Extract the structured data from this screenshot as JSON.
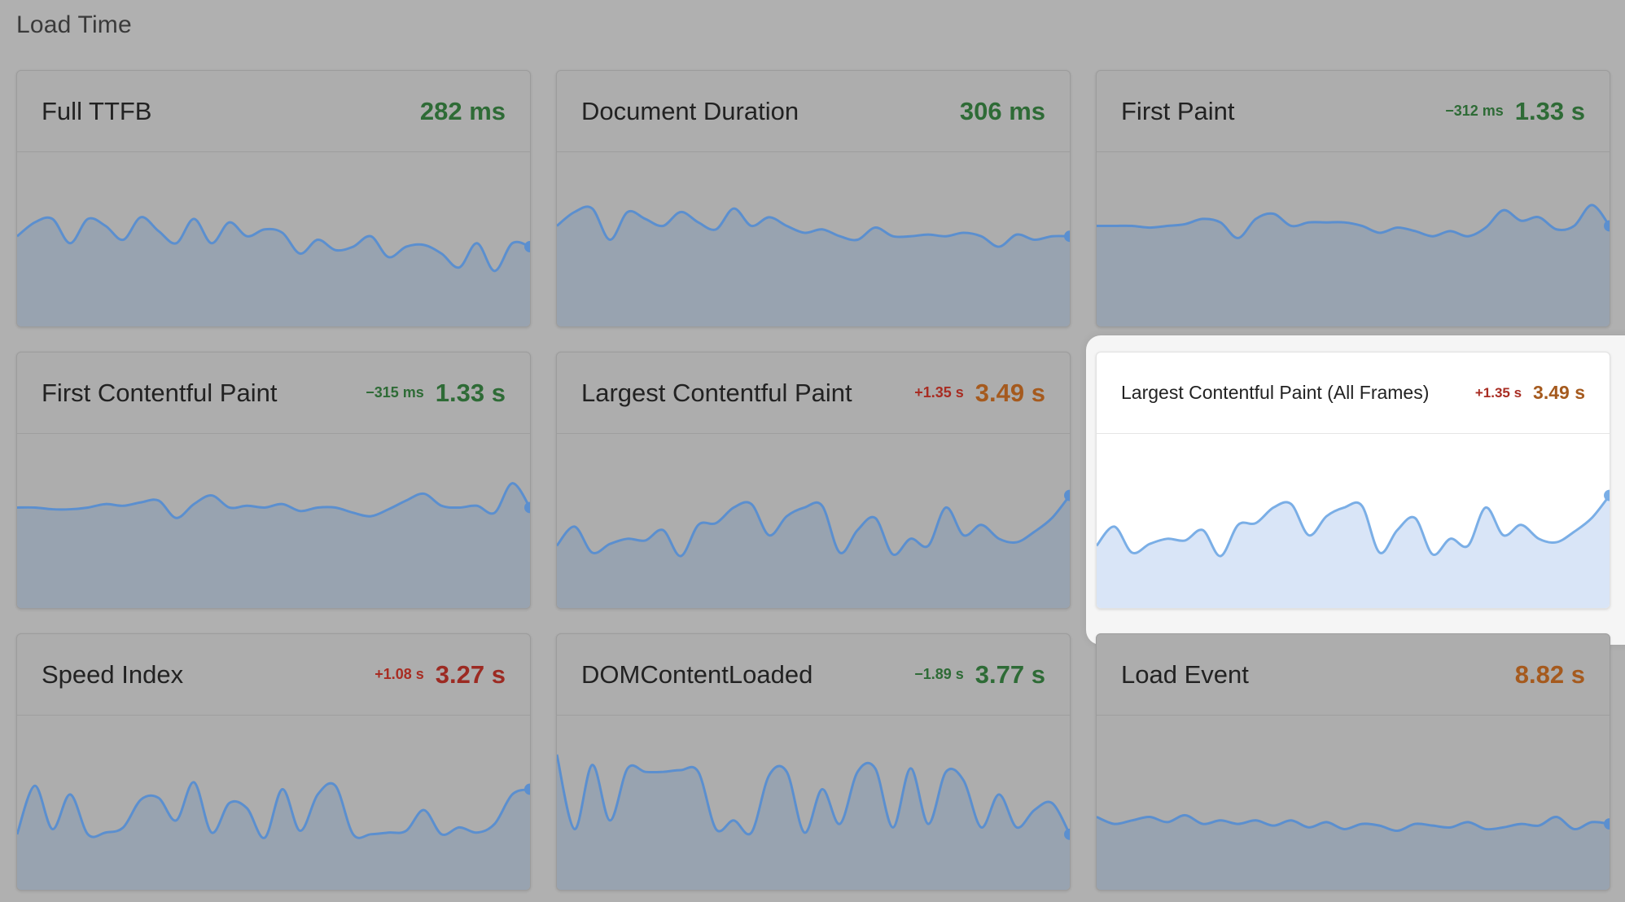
{
  "section": {
    "title": "Load Time"
  },
  "colors": {
    "good": "#2e6b36",
    "needs_improvement": "#a55a1e",
    "poor": "#9c2a22",
    "delta_good": "#2e6b36",
    "delta_bad": "#a82c22",
    "line": "#5b8fcf",
    "fill_dim": "#98a3b0",
    "fill_hl": "#d9e5f7",
    "line_hl": "#7aaee6"
  },
  "cards": [
    {
      "title": "Full TTFB",
      "delta": "",
      "delta_status": "",
      "value": "282 ms",
      "status": "good",
      "series": [
        0.52,
        0.6,
        0.62,
        0.48,
        0.62,
        0.58,
        0.5,
        0.63,
        0.55,
        0.48,
        0.62,
        0.48,
        0.6,
        0.52,
        0.56,
        0.54,
        0.42,
        0.5,
        0.44,
        0.46,
        0.52,
        0.4,
        0.46,
        0.47,
        0.42,
        0.34,
        0.48,
        0.32,
        0.48,
        0.46
      ]
    },
    {
      "title": "Document Duration",
      "delta": "",
      "delta_status": "",
      "value": "306 ms",
      "status": "good",
      "series": [
        0.58,
        0.66,
        0.68,
        0.5,
        0.66,
        0.62,
        0.58,
        0.66,
        0.6,
        0.56,
        0.68,
        0.58,
        0.63,
        0.58,
        0.54,
        0.56,
        0.52,
        0.5,
        0.57,
        0.52,
        0.52,
        0.53,
        0.52,
        0.54,
        0.52,
        0.46,
        0.53,
        0.5,
        0.52,
        0.52
      ]
    },
    {
      "title": "First Paint",
      "delta": "−312 ms",
      "delta_status": "good",
      "value": "1.33 s",
      "status": "good",
      "series": [
        0.58,
        0.58,
        0.58,
        0.57,
        0.58,
        0.59,
        0.62,
        0.6,
        0.51,
        0.62,
        0.65,
        0.58,
        0.6,
        0.6,
        0.6,
        0.58,
        0.54,
        0.57,
        0.55,
        0.52,
        0.55,
        0.52,
        0.57,
        0.67,
        0.61,
        0.63,
        0.56,
        0.58,
        0.7,
        0.58
      ]
    },
    {
      "title": "First Contentful Paint",
      "delta": "−315 ms",
      "delta_status": "good",
      "value": "1.33 s",
      "status": "good",
      "series": [
        0.58,
        0.58,
        0.57,
        0.57,
        0.58,
        0.6,
        0.59,
        0.61,
        0.62,
        0.52,
        0.6,
        0.65,
        0.58,
        0.59,
        0.58,
        0.6,
        0.56,
        0.58,
        0.58,
        0.55,
        0.53,
        0.57,
        0.62,
        0.66,
        0.59,
        0.58,
        0.59,
        0.55,
        0.72,
        0.58
      ]
    },
    {
      "title": "Largest Contentful Paint",
      "delta": "+1.35 s",
      "delta_status": "bad",
      "value": "3.49 s",
      "status": "needs_improvement",
      "series": [
        0.36,
        0.47,
        0.32,
        0.37,
        0.4,
        0.39,
        0.45,
        0.3,
        0.48,
        0.49,
        0.58,
        0.6,
        0.42,
        0.53,
        0.58,
        0.59,
        0.32,
        0.45,
        0.52,
        0.31,
        0.4,
        0.36,
        0.58,
        0.42,
        0.48,
        0.4,
        0.38,
        0.44,
        0.52,
        0.65
      ]
    },
    {
      "title": "Largest Contentful Paint (All Frames)",
      "delta": "+1.35 s",
      "delta_status": "bad",
      "value": "3.49 s",
      "status": "needs_improvement",
      "series": [
        0.36,
        0.47,
        0.32,
        0.37,
        0.4,
        0.39,
        0.45,
        0.3,
        0.48,
        0.49,
        0.58,
        0.6,
        0.42,
        0.53,
        0.58,
        0.59,
        0.32,
        0.45,
        0.52,
        0.31,
        0.4,
        0.36,
        0.58,
        0.42,
        0.48,
        0.4,
        0.38,
        0.44,
        0.52,
        0.65
      ]
    },
    {
      "title": "Speed Index",
      "delta": "+1.08 s",
      "delta_status": "bad",
      "value": "3.27 s",
      "status": "poor",
      "series": [
        0.32,
        0.6,
        0.35,
        0.55,
        0.32,
        0.33,
        0.36,
        0.52,
        0.53,
        0.4,
        0.62,
        0.33,
        0.5,
        0.47,
        0.3,
        0.58,
        0.34,
        0.55,
        0.6,
        0.32,
        0.32,
        0.33,
        0.34,
        0.46,
        0.32,
        0.36,
        0.33,
        0.38,
        0.55,
        0.58
      ]
    },
    {
      "title": "DOMContentLoaded",
      "delta": "−1.89 s",
      "delta_status": "good",
      "value": "3.77 s",
      "status": "good",
      "series": [
        0.78,
        0.35,
        0.72,
        0.4,
        0.7,
        0.68,
        0.68,
        0.69,
        0.68,
        0.35,
        0.4,
        0.33,
        0.66,
        0.68,
        0.33,
        0.58,
        0.38,
        0.68,
        0.7,
        0.36,
        0.7,
        0.38,
        0.68,
        0.63,
        0.36,
        0.55,
        0.36,
        0.46,
        0.5,
        0.32
      ]
    },
    {
      "title": "Load Event",
      "delta": "",
      "delta_status": "",
      "value": "8.82 s",
      "status": "needs_improvement",
      "series": [
        0.42,
        0.38,
        0.4,
        0.42,
        0.39,
        0.43,
        0.38,
        0.4,
        0.38,
        0.4,
        0.37,
        0.4,
        0.36,
        0.39,
        0.35,
        0.38,
        0.37,
        0.34,
        0.38,
        0.37,
        0.36,
        0.39,
        0.35,
        0.36,
        0.38,
        0.37,
        0.42,
        0.35,
        0.39,
        0.38
      ]
    }
  ]
}
